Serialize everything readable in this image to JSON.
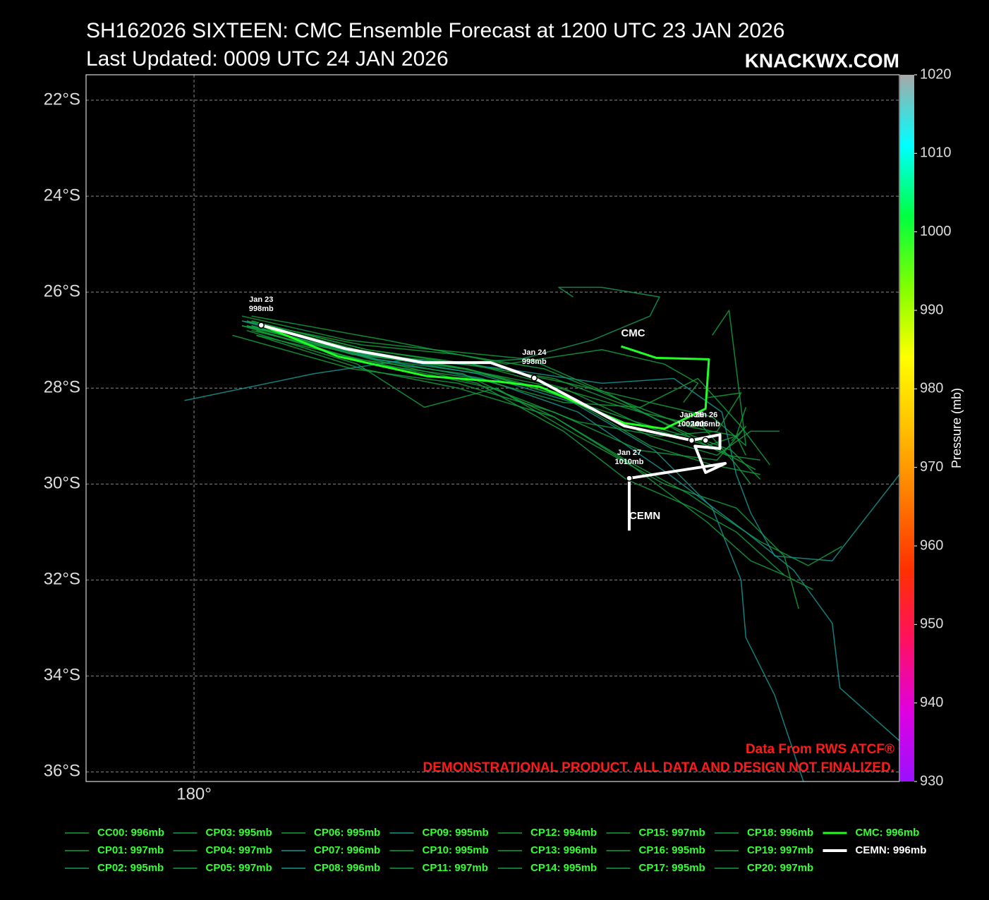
{
  "chart_data": {
    "type": "track",
    "title": "SH162026 SIXTEEN: CMC Ensemble Forecast at 1200 UTC 23 JAN 2026",
    "subtitle": "Last Updated: 0009 UTC 24 JAN 2026",
    "brand": "KNACKWX.COM",
    "source": "Data From RWS ATCF®",
    "disclaimer": "DEMONSTRATIONAL PRODUCT. ALL DATA AND DESIGN NOT FINALIZED.",
    "xlim": [
      177.75,
      194.7
    ],
    "ylim": [
      -36.2,
      -21.47
    ],
    "xticks": [
      {
        "value": 180,
        "label": "180°"
      }
    ],
    "yticks": [
      {
        "value": -22,
        "label": "22°S"
      },
      {
        "value": -24,
        "label": "24°S"
      },
      {
        "value": -26,
        "label": "26°S"
      },
      {
        "value": -28,
        "label": "28°S"
      },
      {
        "value": -30,
        "label": "30°S"
      },
      {
        "value": -32,
        "label": "32°S"
      },
      {
        "value": -34,
        "label": "34°S"
      },
      {
        "value": -36,
        "label": "36°S"
      }
    ],
    "grid": true,
    "colorbar": {
      "label": "Pressure (mb)",
      "lim": [
        930,
        1020
      ],
      "ticks": [
        930,
        940,
        950,
        960,
        970,
        980,
        990,
        1000,
        1010,
        1020
      ],
      "colors": [
        "#9b10ff",
        "#e000e0",
        "#ff1060",
        "#ff3000",
        "#ff7a00",
        "#ffc000",
        "#ffff00",
        "#80ff00",
        "#00ff40",
        "#00ffff",
        "#a8a8a8"
      ]
    },
    "series": [
      {
        "name": "CC00: 996mb",
        "color": "#12a03c",
        "width": 1.5,
        "x": [
          181.0,
          183.5,
          185.5,
          187.3,
          189.0,
          190.3,
          191.3,
          191.5
        ],
        "values": [
          -26.6,
          -27.1,
          -27.3,
          -27.6,
          -28.3,
          -28.8,
          -29.0,
          -28.4
        ]
      },
      {
        "name": "CP01: 997mb",
        "color": "#12a03c",
        "width": 1.5,
        "x": [
          181.2,
          183.8,
          186.0,
          187.8,
          189.5,
          190.8,
          191.8
        ],
        "values": [
          -26.8,
          -27.4,
          -27.7,
          -28.2,
          -29.2,
          -29.6,
          -29.8
        ]
      },
      {
        "name": "CP02: 995mb",
        "color": "#139a55",
        "width": 1.5,
        "x": [
          181.1,
          183.3,
          185.0,
          186.8,
          188.3,
          189.5,
          189.7,
          188.5,
          187.6,
          187.9
        ],
        "values": [
          -26.7,
          -27.3,
          -27.5,
          -27.4,
          -27.0,
          -26.5,
          -26.1,
          -25.9,
          -25.9,
          -26.1
        ]
      },
      {
        "name": "CP03: 995mb",
        "color": "#12a03c",
        "width": 1.5,
        "x": [
          181.3,
          183.5,
          185.5,
          187.5,
          189.0,
          190.3,
          191.8,
          192.8,
          193.5
        ],
        "values": [
          -26.9,
          -27.6,
          -28.0,
          -28.6,
          -29.5,
          -30.2,
          -31.2,
          -31.7,
          -31.3
        ]
      },
      {
        "name": "CP04: 997mb",
        "color": "#12a03c",
        "width": 1.5,
        "x": [
          181.0,
          183.6,
          185.8,
          187.8,
          189.5,
          190.8,
          191.5,
          191.15,
          190.8
        ],
        "values": [
          -26.7,
          -27.3,
          -27.5,
          -27.9,
          -28.3,
          -28.6,
          -29.2,
          -26.38,
          -26.9
        ]
      },
      {
        "name": "CP05: 997mb",
        "color": "#12a03c",
        "width": 1.5,
        "x": [
          181.2,
          184.0,
          186.5,
          188.5,
          189.8,
          190.5,
          190.2
        ],
        "values": [
          -26.5,
          -27.0,
          -27.5,
          -27.2,
          -27.5,
          -27.9,
          -28.3
        ]
      },
      {
        "name": "CP06: 995mb",
        "color": "#12a03c",
        "width": 1.5,
        "x": [
          181.1,
          183.4,
          184.8,
          186.3,
          188.0,
          189.8,
          191.3,
          192.3,
          192.6
        ],
        "values": [
          -26.8,
          -27.5,
          -28.4,
          -28.0,
          -29.0,
          -30.0,
          -30.5,
          -31.5,
          -32.6
        ]
      },
      {
        "name": "CP07: 996mb",
        "color": "#169590",
        "width": 1.5,
        "x": [
          179.8,
          182.5,
          184.5,
          186.5,
          188.5,
          190.0,
          191.0,
          191.3,
          191.6,
          192.1,
          193.3,
          194.7
        ],
        "values": [
          -28.26,
          -27.7,
          -27.4,
          -27.6,
          -27.9,
          -27.8,
          -28.5,
          -29.8,
          -30.6,
          -31.5,
          -31.6,
          -29.8
        ]
      },
      {
        "name": "CP08: 996mb",
        "color": "#169590",
        "width": 1.5,
        "x": [
          181.0,
          183.6,
          185.9,
          187.9,
          189.6,
          190.8,
          191.4,
          191.5,
          192.1,
          192.7
        ],
        "values": [
          -26.6,
          -27.3,
          -27.7,
          -28.3,
          -29.3,
          -30.5,
          -32.0,
          -33.2,
          -34.4,
          -36.2
        ]
      },
      {
        "name": "CP09: 995mb",
        "color": "#169590",
        "width": 1.5,
        "x": [
          181.2,
          183.8,
          186.0,
          188.0,
          189.9,
          191.5,
          192.5,
          193.3,
          193.46,
          194.7
        ],
        "values": [
          -26.7,
          -27.4,
          -27.8,
          -28.5,
          -29.8,
          -31.0,
          -31.8,
          -32.9,
          -34.25,
          -35.35
        ]
      },
      {
        "name": "CP10: 995mb",
        "color": "#12a03c",
        "width": 1.5,
        "x": [
          181.1,
          183.4,
          185.7,
          187.4,
          189.2,
          190.6,
          191.7
        ],
        "values": [
          -26.6,
          -27.2,
          -27.6,
          -28.1,
          -28.7,
          -29.1,
          -29.7
        ]
      },
      {
        "name": "CP11: 997mb",
        "color": "#12a03c",
        "width": 1.5,
        "x": [
          181.3,
          183.9,
          186.2,
          188.0,
          189.7,
          190.9,
          191.4,
          190.7
        ],
        "values": [
          -26.9,
          -27.5,
          -28.0,
          -28.7,
          -29.0,
          -28.9,
          -28.1,
          -28.2
        ]
      },
      {
        "name": "CP12: 994mb",
        "color": "#12a03c",
        "width": 1.5,
        "x": [
          181.0,
          183.2,
          185.0,
          187.0,
          188.6,
          190.1,
          191.1,
          191.8
        ],
        "values": [
          -26.5,
          -27.0,
          -27.2,
          -27.4,
          -28.1,
          -28.9,
          -29.4,
          -29.5
        ]
      },
      {
        "name": "CP13: 996mb",
        "color": "#12a03c",
        "width": 1.5,
        "x": [
          181.2,
          183.7,
          185.9,
          187.7,
          189.0,
          190.4,
          191.3,
          192.3
        ],
        "values": [
          -26.7,
          -27.4,
          -27.9,
          -28.9,
          -29.9,
          -30.5,
          -31.0,
          -31.9
        ]
      },
      {
        "name": "CP14: 995mb",
        "color": "#12a03c",
        "width": 1.5,
        "x": [
          181.1,
          183.5,
          185.6,
          187.6,
          189.3,
          190.6,
          191.3,
          191.6
        ],
        "values": [
          -26.6,
          -27.3,
          -27.6,
          -28.0,
          -28.5,
          -28.8,
          -29.6,
          -30.0
        ]
      },
      {
        "name": "CP15: 997mb",
        "color": "#12a03c",
        "width": 1.5,
        "x": [
          181.3,
          183.7,
          185.9,
          187.7,
          189.3,
          190.5,
          191.4,
          192.0
        ],
        "values": [
          -26.8,
          -27.5,
          -27.8,
          -28.3,
          -28.4,
          -27.8,
          -28.8,
          -29.6
        ]
      },
      {
        "name": "CP16: 995mb",
        "color": "#12a03c",
        "width": 1.5,
        "x": [
          181.0,
          183.4,
          185.6,
          187.5,
          189.1,
          190.7,
          191.6,
          192.3,
          192.9
        ],
        "values": [
          -26.7,
          -27.4,
          -27.7,
          -28.6,
          -29.6,
          -30.8,
          -31.6,
          -31.9,
          -32.2
        ]
      },
      {
        "name": "CP17: 995mb",
        "color": "#12a03c",
        "width": 1.5,
        "x": [
          181.2,
          183.6,
          185.8,
          187.7,
          189.4,
          190.7,
          191.3,
          191.5
        ],
        "values": [
          -26.6,
          -27.2,
          -27.5,
          -28.0,
          -28.8,
          -29.2,
          -29.0,
          -29.4
        ]
      },
      {
        "name": "CP18: 996mb",
        "color": "#12a03c",
        "width": 1.5,
        "x": [
          180.8,
          183.3,
          185.5,
          187.5,
          189.3,
          190.9,
          191.5,
          191.2
        ],
        "values": [
          -26.9,
          -27.6,
          -27.9,
          -28.5,
          -29.3,
          -29.5,
          -28.8,
          -29.1
        ]
      },
      {
        "name": "CP19: 997mb",
        "color": "#12a03c",
        "width": 1.5,
        "x": [
          181.1,
          183.5,
          185.7,
          187.6,
          189.5,
          190.9,
          191.6,
          192.2
        ],
        "values": [
          -26.7,
          -27.3,
          -27.6,
          -28.1,
          -29.0,
          -29.4,
          -28.9,
          -28.9
        ]
      },
      {
        "name": "CP20: 997mb",
        "color": "#12a03c",
        "width": 1.5,
        "x": [
          181.2,
          183.6,
          185.6,
          187.5,
          189.1,
          190.4,
          191.2,
          191.8
        ],
        "values": [
          -26.6,
          -27.2,
          -27.5,
          -27.8,
          -28.4,
          -29.0,
          -29.3,
          -29.9
        ]
      },
      {
        "name": "CMC: 996mb",
        "label": "CMC",
        "color": "#22ff22",
        "width": 3,
        "x": [
          181.4,
          183.0,
          184.85,
          186.4,
          187.2,
          188.97,
          189.8,
          190.66,
          190.73,
          189.63,
          188.9
        ],
        "values": [
          -26.69,
          -27.34,
          -27.75,
          -27.87,
          -27.97,
          -28.73,
          -28.85,
          -28.43,
          -27.4,
          -27.37,
          -27.13
        ]
      },
      {
        "name": "CEMN: 996mb",
        "label": "CEMN",
        "color": "#ffffff",
        "width": 4,
        "x": [
          181.4,
          183.16,
          184.78,
          186.18,
          187.09,
          188.97,
          190.37,
          190.96,
          190.96,
          190.44,
          190.66,
          191.07,
          189.07,
          189.07
        ],
        "values": [
          -26.69,
          -27.18,
          -27.47,
          -27.47,
          -27.79,
          -28.79,
          -29.09,
          -28.97,
          -29.26,
          -29.21,
          -29.76,
          -29.57,
          -29.88,
          -30.97
        ]
      }
    ],
    "annotations": [
      {
        "label": "Jan 23",
        "text": "998mb",
        "x": 181.4,
        "y": -26.69
      },
      {
        "label": "Jan 24",
        "text": "998mb",
        "x": 187.09,
        "y": -27.79
      },
      {
        "label": "Jan 25",
        "text": "1002mb",
        "x": 190.37,
        "y": -29.09
      },
      {
        "label": "Jan 26",
        "text": "1006mb",
        "x": 190.66,
        "y": -29.09
      },
      {
        "label": "Jan 27",
        "text": "1010mb",
        "x": 189.07,
        "y": -29.88
      }
    ]
  }
}
